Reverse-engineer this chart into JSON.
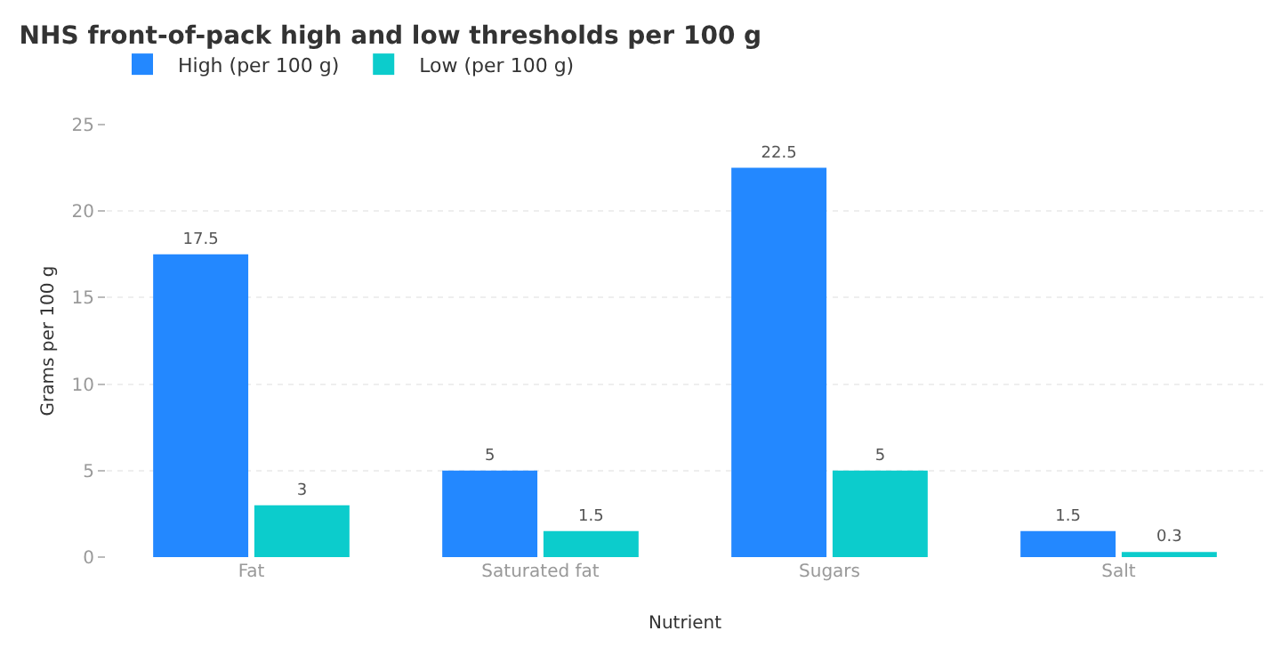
{
  "chart_data": {
    "type": "bar",
    "title": "NHS front-of-pack high and low thresholds per 100 g",
    "xlabel": "Nutrient",
    "ylabel": "Grams per 100 g",
    "categories": [
      "Fat",
      "Saturated fat",
      "Sugars",
      "Salt"
    ],
    "series": [
      {
        "name": "High (per 100 g)",
        "color": "#2388ff",
        "values": [
          17.5,
          5,
          22.5,
          1.5
        ]
      },
      {
        "name": "Low (per 100 g)",
        "color": "#0ccccc",
        "values": [
          3,
          1.5,
          5,
          0.3
        ]
      }
    ],
    "ylim": [
      0,
      25
    ],
    "yticks": [
      0,
      5,
      10,
      15,
      20,
      25
    ],
    "grid": "y",
    "legend": "top left",
    "data_labels": true
  }
}
